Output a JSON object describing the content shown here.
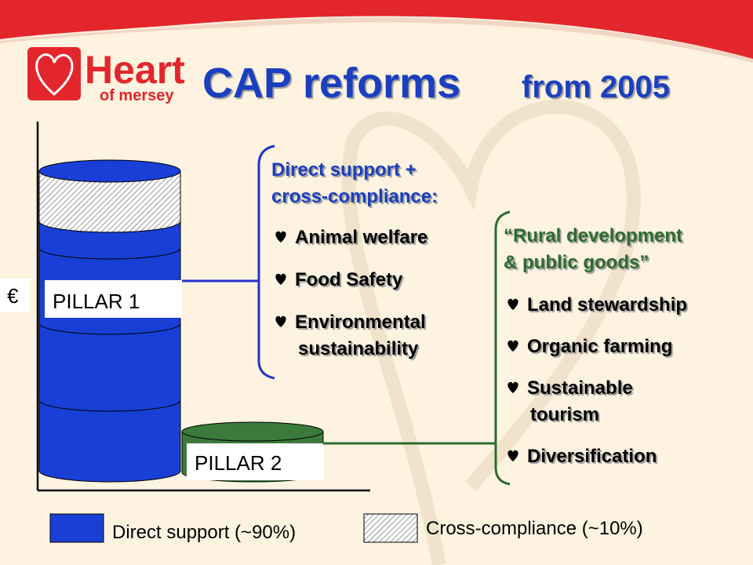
{
  "logo": {
    "name": "Heart",
    "tagline": "of mersey"
  },
  "title": {
    "main": "CAP reforms",
    "suffix": "from 2005"
  },
  "axis_label": "€",
  "pillars": [
    {
      "label": "PILLAR 1"
    },
    {
      "label": "PILLAR 2"
    }
  ],
  "pillar1_box": {
    "heading": [
      "Direct support +",
      "cross-compliance:"
    ],
    "items": [
      [
        "Animal welfare"
      ],
      [
        "Food Safety"
      ],
      [
        "Environmental",
        "sustainability"
      ]
    ]
  },
  "pillar2_box": {
    "heading": [
      "“Rural development",
      "& public goods”"
    ],
    "items": [
      [
        "Land stewardship"
      ],
      [
        "Organic farming"
      ],
      [
        "Sustainable",
        "tourism"
      ],
      [
        "Diversification"
      ]
    ]
  },
  "legend": [
    {
      "label": "Direct support (~90%)"
    },
    {
      "label": "Cross-compliance (~10%)"
    }
  ]
}
